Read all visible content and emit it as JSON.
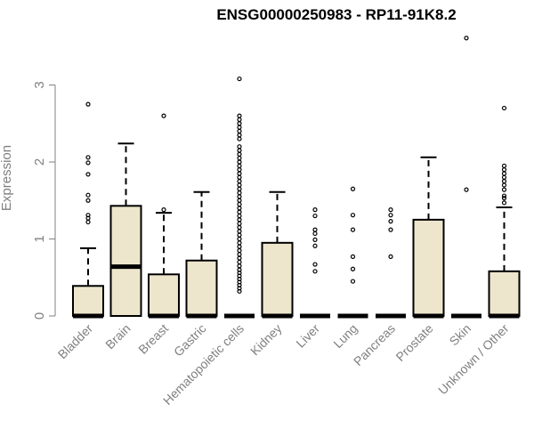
{
  "chart_data": {
    "type": "box",
    "title": "ENSG00000250983 - RP11-91K8.2",
    "ylabel": "Expression",
    "xlabel": "",
    "ylim": [
      0,
      3.7
    ],
    "yticks": [
      0,
      1,
      2,
      3
    ],
    "box_fill": "#ede6cd",
    "categories": [
      "Bladder",
      "Brain",
      "Breast",
      "Gastric",
      "Hematopoietic cells",
      "Kidney",
      "Liver",
      "Lung",
      "Pancreas",
      "Prostate",
      "Skin",
      "Unknown / Other"
    ],
    "boxes": [
      {
        "category": "Bladder",
        "q1": 0,
        "median": 0,
        "q3": 0.39,
        "whisker_low": 0,
        "whisker_high": 0.88,
        "outliers": [
          1.22,
          1.27,
          1.31,
          1.5,
          1.57,
          1.84,
          1.99,
          2.06,
          2.75
        ]
      },
      {
        "category": "Brain",
        "q1": 0,
        "median": 0.64,
        "q3": 1.43,
        "whisker_low": 0,
        "whisker_high": 2.24,
        "outliers": []
      },
      {
        "category": "Breast",
        "q1": 0,
        "median": 0,
        "q3": 0.54,
        "whisker_low": 0,
        "whisker_high": 1.34,
        "outliers": [
          1.38,
          2.6
        ]
      },
      {
        "category": "Gastric",
        "q1": 0,
        "median": 0,
        "q3": 0.72,
        "whisker_low": 0,
        "whisker_high": 1.61,
        "outliers": []
      },
      {
        "category": "Hematopoietic cells",
        "q1": 0,
        "median": 0,
        "q3": 0,
        "whisker_low": 0,
        "whisker_high": 0,
        "outliers": [
          0.32,
          0.36,
          0.4,
          0.44,
          0.48,
          0.52,
          0.56,
          0.6,
          0.65,
          0.7,
          0.75,
          0.8,
          0.85,
          0.9,
          0.95,
          1.0,
          1.05,
          1.1,
          1.15,
          1.2,
          1.25,
          1.3,
          1.35,
          1.4,
          1.45,
          1.5,
          1.55,
          1.6,
          1.65,
          1.7,
          1.75,
          1.8,
          1.85,
          1.9,
          1.95,
          2.0,
          2.05,
          2.1,
          2.15,
          2.2,
          2.3,
          2.35,
          2.4,
          2.45,
          2.5,
          2.55,
          2.6,
          3.08
        ]
      },
      {
        "category": "Kidney",
        "q1": 0,
        "median": 0,
        "q3": 0.95,
        "whisker_low": 0,
        "whisker_high": 1.61,
        "outliers": []
      },
      {
        "category": "Liver",
        "q1": 0,
        "median": 0,
        "q3": 0,
        "whisker_low": 0,
        "whisker_high": 0,
        "outliers": [
          0.58,
          0.67,
          0.91,
          0.99,
          1.07,
          1.12,
          1.3,
          1.38
        ]
      },
      {
        "category": "Lung",
        "q1": 0,
        "median": 0,
        "q3": 0,
        "whisker_low": 0,
        "whisker_high": 0,
        "outliers": [
          0.45,
          0.61,
          0.77,
          1.12,
          1.31,
          1.65
        ]
      },
      {
        "category": "Pancreas",
        "q1": 0,
        "median": 0,
        "q3": 0,
        "whisker_low": 0,
        "whisker_high": 0,
        "outliers": [
          0.77,
          1.12,
          1.23,
          1.31,
          1.38
        ]
      },
      {
        "category": "Prostate",
        "q1": 0,
        "median": 0,
        "q3": 1.25,
        "whisker_low": 0,
        "whisker_high": 2.06,
        "outliers": []
      },
      {
        "category": "Skin",
        "q1": 0,
        "median": 0,
        "q3": 0,
        "whisker_low": 0,
        "whisker_high": 0,
        "outliers": [
          1.64,
          3.61
        ]
      },
      {
        "category": "Unknown / Other",
        "q1": 0,
        "median": 0,
        "q3": 0.58,
        "whisker_low": 0,
        "whisker_high": 1.41,
        "outliers": [
          1.47,
          1.53,
          1.56,
          1.64,
          1.7,
          1.75,
          1.8,
          1.85,
          1.9,
          1.95,
          2.7
        ]
      }
    ]
  }
}
